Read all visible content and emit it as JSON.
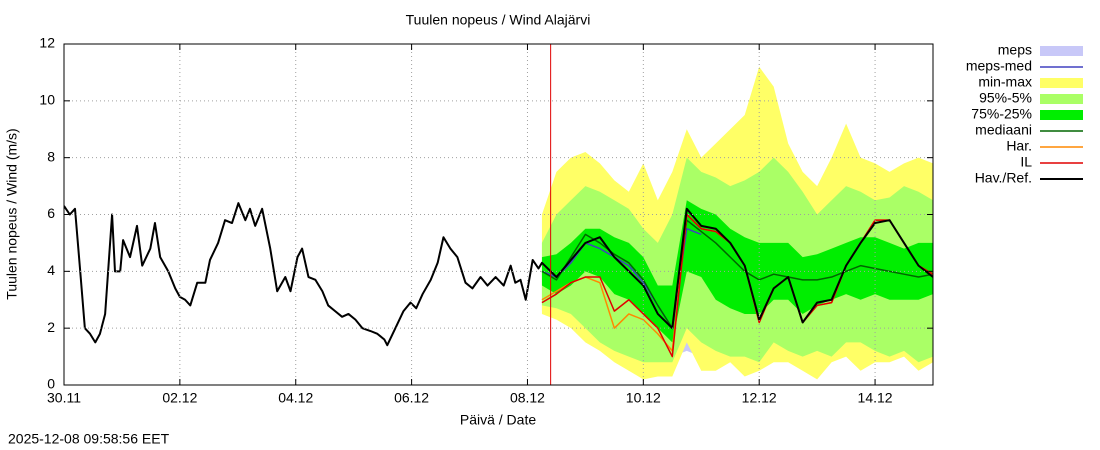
{
  "chart_data": {
    "type": "line",
    "title": "Tuulen nopeus / Wind  Alajärvi",
    "y_label": "Tuulen nopeus / Wind (m/s)",
    "x_label": "Päivä / Date",
    "timestamp": "2025-12-08 09:58:56 EET",
    "xlim": [
      0,
      15
    ],
    "ylim": [
      0,
      12
    ],
    "xticks": [
      {
        "value": 0,
        "label": "30.11"
      },
      {
        "value": 2,
        "label": "02.12"
      },
      {
        "value": 4,
        "label": "04.12"
      },
      {
        "value": 6,
        "label": "06.12"
      },
      {
        "value": 8,
        "label": "08.12"
      },
      {
        "value": 10,
        "label": "10.12"
      },
      {
        "value": 12,
        "label": "12.12"
      },
      {
        "value": 14,
        "label": "14.12"
      }
    ],
    "yticks": [
      0,
      2,
      4,
      6,
      8,
      10,
      12
    ],
    "grid": true,
    "legend": "right",
    "marker_x": 8.4,
    "marker_color": "#e00000",
    "series": [
      {
        "name": "meps",
        "kind": "band",
        "color": "#c8c8f8",
        "x": [
          8.25,
          8.5,
          8.75,
          9,
          9.25,
          9.5,
          9.75,
          10,
          10.25,
          10.5,
          10.75,
          11
        ],
        "low": [
          2.6,
          2.5,
          2.0,
          2.2,
          1.5,
          1.2,
          0.5,
          0.3,
          1.0,
          1.0,
          1.2,
          1.0
        ],
        "high": [
          3.5,
          3.8,
          3.8,
          3.8,
          3.6,
          3.0,
          2.8,
          2.5,
          2.8,
          3.0,
          3.5,
          3.2
        ]
      },
      {
        "name": "meps-med",
        "kind": "line",
        "color": "#4040c0",
        "x": [
          8.25,
          8.5,
          8.75,
          9,
          9.25,
          9.5,
          9.75,
          10,
          10.25,
          10.5,
          10.75,
          11
        ],
        "values": [
          4.0,
          3.8,
          4.3,
          5.0,
          4.8,
          4.5,
          4.2,
          3.6,
          2.8,
          2.0,
          5.5,
          5.3
        ]
      },
      {
        "name": "min-max",
        "kind": "band",
        "color": "#ffff66",
        "x": [
          8.25,
          8.5,
          8.75,
          9,
          9.25,
          9.5,
          9.75,
          10,
          10.25,
          10.5,
          10.75,
          11,
          11.25,
          11.5,
          11.75,
          12,
          12.25,
          12.5,
          12.75,
          13,
          13.25,
          13.5,
          13.75,
          14,
          14.25,
          14.5,
          14.75,
          15
        ],
        "low": [
          2.5,
          2.3,
          2.0,
          1.5,
          1.2,
          0.8,
          0.5,
          0.2,
          0.3,
          0.3,
          1.5,
          0.5,
          0.5,
          0.8,
          0.3,
          0.5,
          0.8,
          0.8,
          0.5,
          0.2,
          0.8,
          1.0,
          0.5,
          0.8,
          0.8,
          1.0,
          0.5,
          0.8
        ],
        "high": [
          6.0,
          7.5,
          8.0,
          8.2,
          7.8,
          7.2,
          6.8,
          7.8,
          6.5,
          7.5,
          9.0,
          8.0,
          8.5,
          9.0,
          9.5,
          11.2,
          10.5,
          8.5,
          7.5,
          7.0,
          8.0,
          9.2,
          8.0,
          7.8,
          7.5,
          7.8,
          8.0,
          7.8
        ]
      },
      {
        "name": "95%-5%",
        "kind": "band",
        "color": "#aaff66",
        "x": [
          8.25,
          8.5,
          8.75,
          9,
          9.25,
          9.5,
          9.75,
          10,
          10.25,
          10.5,
          10.75,
          11,
          11.25,
          11.5,
          11.75,
          12,
          12.25,
          12.5,
          12.75,
          13,
          13.25,
          13.5,
          13.75,
          14,
          14.25,
          14.5,
          14.75,
          15
        ],
        "low": [
          2.8,
          2.7,
          2.5,
          2.0,
          1.5,
          1.2,
          1.0,
          0.8,
          0.8,
          0.8,
          2.0,
          1.5,
          1.2,
          1.0,
          1.0,
          0.8,
          1.5,
          1.2,
          1.0,
          1.2,
          1.0,
          1.5,
          1.5,
          1.2,
          1.0,
          1.2,
          0.8,
          1.0
        ],
        "high": [
          5.0,
          6.0,
          6.5,
          7.0,
          6.8,
          6.5,
          6.2,
          5.5,
          5.0,
          6.0,
          8.0,
          7.5,
          7.3,
          7.0,
          7.2,
          7.5,
          8.0,
          7.5,
          6.8,
          6.0,
          6.5,
          7.0,
          6.8,
          6.5,
          6.6,
          7.0,
          6.8,
          6.5
        ]
      },
      {
        "name": "75%-25%",
        "kind": "band",
        "color": "#00ee00",
        "x": [
          8.25,
          8.5,
          8.75,
          9,
          9.25,
          9.5,
          9.75,
          10,
          10.25,
          10.5,
          10.75,
          11,
          11.25,
          11.5,
          11.75,
          12,
          12.25,
          12.5,
          12.75,
          13,
          13.25,
          13.5,
          13.75,
          14,
          14.25,
          14.5,
          14.75,
          15
        ],
        "low": [
          3.5,
          3.2,
          3.5,
          4.0,
          3.8,
          3.2,
          3.0,
          2.5,
          2.0,
          1.5,
          4.0,
          3.8,
          3.0,
          2.7,
          2.5,
          2.5,
          3.0,
          3.0,
          2.5,
          2.8,
          3.0,
          3.2,
          3.0,
          3.2,
          3.0,
          3.0,
          3.0,
          3.2
        ],
        "high": [
          4.5,
          4.6,
          5.0,
          5.5,
          5.5,
          5.2,
          5.0,
          4.5,
          3.5,
          3.5,
          6.5,
          6.2,
          6.0,
          5.5,
          5.2,
          5.0,
          5.0,
          5.0,
          4.5,
          4.6,
          4.8,
          5.0,
          5.2,
          5.2,
          5.0,
          4.8,
          5.0,
          5.0
        ]
      },
      {
        "name": "mediaani",
        "kind": "line",
        "color": "#006600",
        "x": [
          8.25,
          8.5,
          8.75,
          9,
          9.25,
          9.5,
          9.75,
          10,
          10.25,
          10.5,
          10.75,
          11,
          11.25,
          11.5,
          11.75,
          12,
          12.25,
          12.5,
          12.75,
          13,
          13.25,
          13.5,
          13.75,
          14,
          14.25,
          14.5,
          14.75,
          15
        ],
        "values": [
          4.0,
          3.7,
          4.5,
          5.3,
          5.0,
          4.6,
          4.3,
          3.7,
          2.8,
          2.0,
          5.8,
          5.4,
          5.0,
          4.5,
          4.0,
          3.7,
          3.9,
          3.8,
          3.7,
          3.7,
          3.8,
          4.0,
          4.2,
          4.1,
          4.0,
          3.9,
          3.8,
          3.9
        ]
      },
      {
        "name": "Har.",
        "kind": "line",
        "color": "#ff8800",
        "x": [
          8.25,
          8.5,
          8.75,
          9,
          9.25,
          9.5,
          9.75,
          10,
          10.25,
          10.5,
          10.75,
          11,
          11.25,
          11.5,
          11.75,
          12,
          12.25,
          12.5,
          12.75,
          13,
          13.25,
          13.5,
          13.75,
          14,
          14.25,
          14.5,
          14.75,
          15
        ],
        "values": [
          3.0,
          3.3,
          3.6,
          3.8,
          3.6,
          2.0,
          2.5,
          2.3,
          1.8,
          1.2,
          6.0,
          5.5,
          5.4,
          5.0,
          4.2,
          2.2,
          3.4,
          3.8,
          2.2,
          2.8,
          2.9,
          4.2,
          5.0,
          5.8,
          5.8,
          5.0,
          4.2,
          3.9
        ]
      },
      {
        "name": "IL",
        "kind": "line",
        "color": "#e00000",
        "x": [
          8.25,
          8.5,
          8.75,
          9,
          9.25,
          9.5,
          9.75,
          10,
          10.25,
          10.5,
          10.75,
          11,
          11.25,
          11.5,
          11.75,
          12,
          12.25,
          12.5,
          12.75,
          13,
          13.25,
          13.5,
          13.75,
          14,
          14.25,
          14.5,
          14.75,
          15
        ],
        "values": [
          2.9,
          3.2,
          3.6,
          3.8,
          3.8,
          2.6,
          3.0,
          2.5,
          2.0,
          1.0,
          6.0,
          5.5,
          5.4,
          5.0,
          4.2,
          2.2,
          3.4,
          3.8,
          2.2,
          2.8,
          2.9,
          4.2,
          5.0,
          5.8,
          5.8,
          5.0,
          4.2,
          3.9
        ]
      },
      {
        "name": "Hav./Ref.",
        "kind": "line",
        "color": "#000000",
        "x": [
          0,
          0.1,
          0.19,
          0.28,
          0.36,
          0.45,
          0.54,
          0.62,
          0.71,
          0.83,
          0.88,
          0.97,
          1.02,
          1.14,
          1.26,
          1.35,
          1.49,
          1.57,
          1.66,
          1.8,
          1.92,
          2.0,
          2.09,
          2.18,
          2.3,
          2.44,
          2.52,
          2.66,
          2.78,
          2.9,
          3.01,
          3.13,
          3.21,
          3.3,
          3.42,
          3.56,
          3.68,
          3.82,
          3.91,
          4.03,
          4.11,
          4.22,
          4.34,
          4.46,
          4.56,
          4.68,
          4.8,
          4.91,
          5.03,
          5.15,
          5.29,
          5.41,
          5.53,
          5.58,
          5.72,
          5.86,
          5.98,
          6.08,
          6.19,
          6.33,
          6.45,
          6.55,
          6.67,
          6.79,
          6.93,
          7.05,
          7.19,
          7.31,
          7.45,
          7.59,
          7.71,
          7.79,
          7.88,
          7.97,
          8.09,
          8.19,
          8.25,
          8.5,
          8.75,
          9,
          9.25,
          9.5,
          9.75,
          10,
          10.25,
          10.5,
          10.75,
          11,
          11.25,
          11.5,
          11.75,
          12,
          12.25,
          12.5,
          12.75,
          13,
          13.25,
          13.5,
          13.75,
          14,
          14.25,
          14.5,
          14.75,
          15
        ],
        "values": [
          6.3,
          6.0,
          6.2,
          4.0,
          2.0,
          1.8,
          1.5,
          1.8,
          2.5,
          6.0,
          4.0,
          4.0,
          5.1,
          4.5,
          5.6,
          4.2,
          4.8,
          5.7,
          4.5,
          4.0,
          3.4,
          3.1,
          3.0,
          2.8,
          3.6,
          3.6,
          4.4,
          5.0,
          5.8,
          5.7,
          6.4,
          5.8,
          6.2,
          5.6,
          6.2,
          4.8,
          3.3,
          3.8,
          3.3,
          4.5,
          4.8,
          3.8,
          3.7,
          3.3,
          2.8,
          2.6,
          2.4,
          2.5,
          2.3,
          2.0,
          1.9,
          1.8,
          1.6,
          1.4,
          2.0,
          2.6,
          2.9,
          2.7,
          3.2,
          3.7,
          4.3,
          5.2,
          4.8,
          4.5,
          3.6,
          3.4,
          3.8,
          3.5,
          3.8,
          3.5,
          4.2,
          3.6,
          3.7,
          3.0,
          4.4,
          4.1,
          4.3,
          3.8,
          4.4,
          5.0,
          5.2,
          4.5,
          4.0,
          3.5,
          2.5,
          2.0,
          6.2,
          5.6,
          5.5,
          5.0,
          4.2,
          2.3,
          3.4,
          3.8,
          2.2,
          2.9,
          3.0,
          4.2,
          5.0,
          5.7,
          5.8,
          5.0,
          4.2,
          3.8
        ]
      }
    ]
  }
}
